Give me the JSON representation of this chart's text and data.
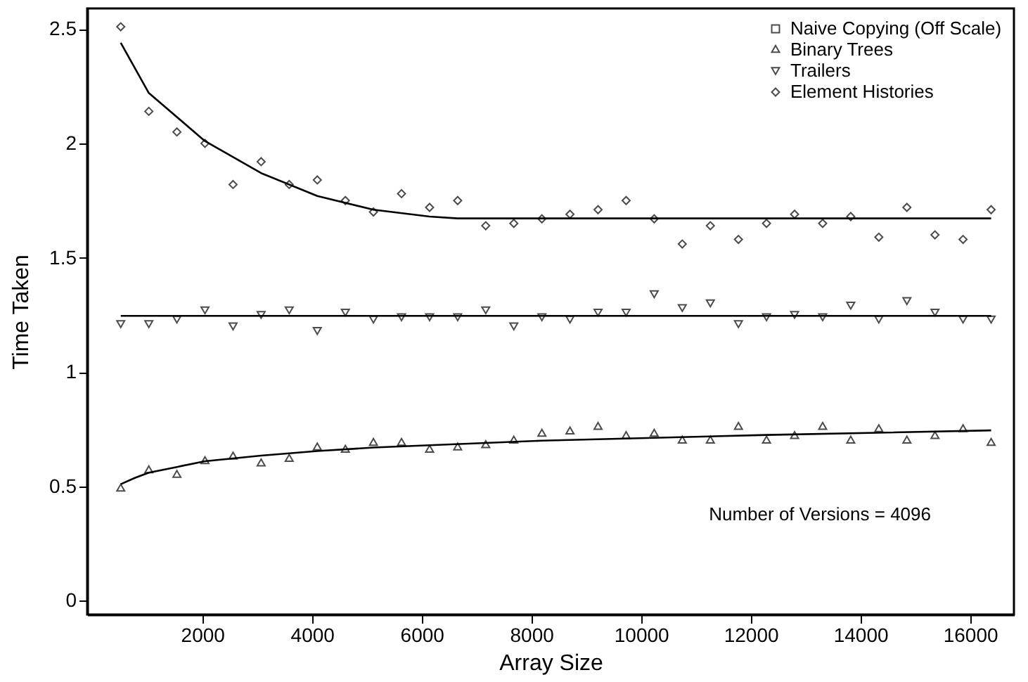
{
  "chart_data": {
    "type": "scatter",
    "xlabel": "Array Size",
    "ylabel": "Time Taken",
    "annotations": [
      "Number of Versions = 4096"
    ],
    "x": [
      512,
      1024,
      1536,
      2048,
      2560,
      3072,
      3584,
      4096,
      4608,
      5120,
      5632,
      6144,
      6656,
      7168,
      7680,
      8192,
      8704,
      9216,
      9728,
      10240,
      10752,
      11264,
      11776,
      12288,
      12800,
      13312,
      13824,
      14336,
      14848,
      15360,
      15872,
      16384
    ],
    "xlim": [
      -100,
      16800
    ],
    "xticks": [
      2000,
      4000,
      6000,
      8000,
      10000,
      12000,
      14000,
      16000
    ],
    "ylim": [
      -0.06,
      2.59
    ],
    "yticks": [
      0,
      0.5,
      1,
      1.5,
      2,
      2.5
    ],
    "grid": false,
    "legend": "top right",
    "series": [
      {
        "name": "Naive Copying (Off Scale)",
        "color": "#000000",
        "marker": "square",
        "values": [
          null,
          null,
          null,
          null,
          null,
          null,
          null,
          null,
          null,
          null,
          null,
          null,
          null,
          null,
          null,
          null,
          null,
          null,
          null,
          null,
          null,
          null,
          null,
          null,
          null,
          null,
          null,
          null,
          null,
          null,
          null,
          null
        ]
      },
      {
        "name": "Binary Trees",
        "color": "#000000",
        "marker": "triangle",
        "values": [
          0.49,
          0.57,
          0.55,
          0.61,
          0.63,
          0.6,
          0.62,
          0.67,
          0.66,
          0.69,
          0.69,
          0.66,
          0.67,
          0.68,
          0.7,
          0.73,
          0.74,
          0.76,
          0.72,
          0.73,
          0.7,
          0.7,
          0.76,
          0.7,
          0.72,
          0.76,
          0.7,
          0.75,
          0.7,
          0.72,
          0.75,
          0.69
        ]
      },
      {
        "name": "Trailers",
        "color": "#000000",
        "marker": "triangle-down",
        "values": [
          1.21,
          1.21,
          1.23,
          1.27,
          1.2,
          1.25,
          1.27,
          1.18,
          1.26,
          1.23,
          1.24,
          1.24,
          1.24,
          1.27,
          1.2,
          1.24,
          1.23,
          1.26,
          1.26,
          1.34,
          1.28,
          1.3,
          1.21,
          1.24,
          1.25,
          1.24,
          1.29,
          1.23,
          1.31,
          1.26,
          1.23,
          1.23
        ]
      },
      {
        "name": "Element Histories",
        "color": "#000000",
        "marker": "diamond",
        "values": [
          2.51,
          2.14,
          2.05,
          2.0,
          1.82,
          1.92,
          1.82,
          1.84,
          1.75,
          1.7,
          1.78,
          1.72,
          1.75,
          1.64,
          1.65,
          1.67,
          1.69,
          1.71,
          1.75,
          1.67,
          1.56,
          1.64,
          1.58,
          1.65,
          1.69,
          1.65,
          1.68,
          1.59,
          1.72,
          1.6,
          1.58,
          1.71
        ]
      },
      {
        "type": "line",
        "color": "#000000",
        "x": [
          512,
          768,
          1024,
          1536,
          2048,
          3072,
          4096,
          5120,
          6144,
          8192,
          12288,
          16384
        ],
        "values": [
          0.51,
          0.537,
          0.56,
          0.585,
          0.61,
          0.635,
          0.655,
          0.67,
          0.68,
          0.7,
          0.725,
          0.745
        ]
      },
      {
        "type": "line",
        "color": "#000000",
        "x": [
          512,
          16384
        ],
        "values": [
          1.246,
          1.246
        ]
      },
      {
        "type": "line",
        "color": "#000000",
        "x": [
          512,
          1024,
          2048,
          3072,
          4096,
          5120,
          6144,
          6656,
          16384
        ],
        "values": [
          2.44,
          2.22,
          2.01,
          1.87,
          1.77,
          1.71,
          1.68,
          1.672,
          1.672
        ]
      }
    ]
  }
}
